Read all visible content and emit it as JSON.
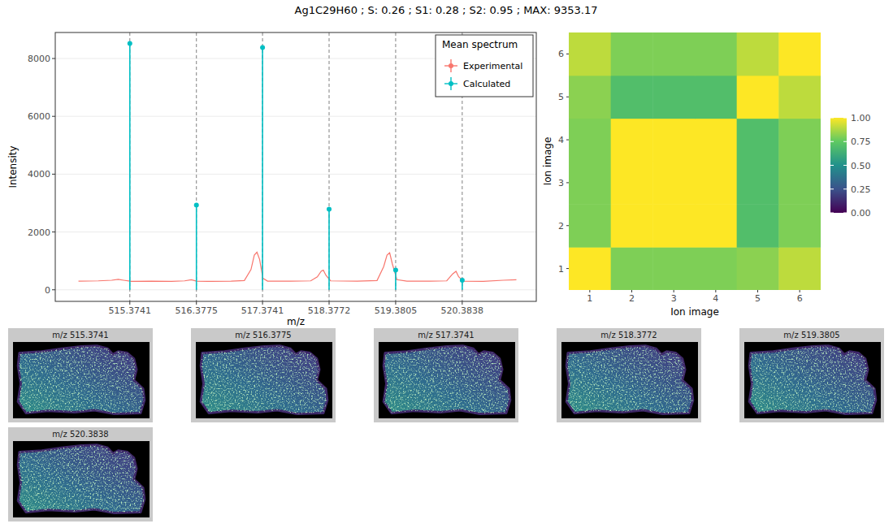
{
  "title": "Ag1C29H60 ; S: 0.26 ; S1: 0.28 ; S2: 0.95 ; MAX: 9353.17",
  "chart_data": [
    {
      "type": "line",
      "x_label": "m/z",
      "y_label": "Intensity",
      "xlim": [
        514.25,
        521.5
      ],
      "ylim": [
        -400,
        8900
      ],
      "xticks": [
        515.3741,
        516.3775,
        517.3741,
        518.3772,
        519.3805,
        520.3838
      ],
      "yticks": [
        0,
        2000,
        4000,
        6000,
        8000
      ],
      "grid": true,
      "legend": "top-right",
      "legend_title": "Mean spectrum",
      "series": [
        {
          "name": "Experimental",
          "color": "#F8766D",
          "type": "line",
          "x": [
            514.6,
            514.9,
            515.1,
            515.2,
            515.28,
            515.4,
            515.7,
            516.0,
            516.2,
            516.3,
            516.38,
            516.6,
            516.9,
            517.1,
            517.2,
            517.25,
            517.29,
            517.33,
            517.38,
            517.45,
            517.8,
            518.1,
            518.2,
            518.26,
            518.29,
            518.33,
            518.4,
            518.8,
            519.1,
            519.2,
            519.25,
            519.29,
            519.33,
            519.4,
            519.55,
            519.9,
            520.15,
            520.24,
            520.29,
            520.33,
            520.4,
            520.7,
            521.0,
            521.2
          ],
          "values": [
            300,
            310,
            330,
            360,
            330,
            290,
            300,
            290,
            310,
            350,
            300,
            290,
            300,
            320,
            700,
            1200,
            1300,
            1050,
            400,
            300,
            300,
            310,
            450,
            650,
            680,
            500,
            310,
            300,
            320,
            800,
            1200,
            1280,
            900,
            350,
            300,
            300,
            310,
            550,
            640,
            450,
            300,
            290,
            330,
            350
          ]
        },
        {
          "name": "Calculated",
          "color": "#00BFC4",
          "type": "stem",
          "marker": "circle",
          "x": [
            515.3741,
            516.3775,
            517.3741,
            518.3772,
            519.3805,
            520.3838
          ],
          "values": [
            8520,
            2930,
            8380,
            2790,
            680,
            330
          ]
        }
      ]
    },
    {
      "type": "heatmap",
      "x_label": "Ion image",
      "y_label": "Ion image",
      "xlim": [
        0.5,
        6.5
      ],
      "ylim": [
        0.5,
        6.5
      ],
      "xticks": [
        1,
        2,
        3,
        4,
        5,
        6
      ],
      "yticks": [
        1,
        2,
        3,
        4,
        5,
        6
      ],
      "cells": [
        [
          1.0,
          0.8,
          0.8,
          0.8,
          0.82,
          0.9
        ],
        [
          0.8,
          1.0,
          1.0,
          1.0,
          0.7,
          0.8
        ],
        [
          0.8,
          1.0,
          1.0,
          1.0,
          0.7,
          0.8
        ],
        [
          0.8,
          1.0,
          1.0,
          1.0,
          0.7,
          0.8
        ],
        [
          0.82,
          0.7,
          0.7,
          0.7,
          1.0,
          0.9
        ],
        [
          0.9,
          0.8,
          0.8,
          0.8,
          0.9,
          1.0
        ]
      ],
      "color_range": [
        0,
        1
      ],
      "color_ticks": [
        {
          "value": 0,
          "label": "0.00"
        },
        0.25,
        {
          "value": 0.5,
          "label": "0.50"
        },
        0.75,
        {
          "value": 1,
          "label": "1.00"
        }
      ]
    }
  ],
  "ion_images": [
    {
      "title": "m/z 515.3741"
    },
    {
      "title": "m/z 516.3775"
    },
    {
      "title": "m/z 517.3741"
    },
    {
      "title": "m/z 518.3772"
    },
    {
      "title": "m/z 519.3805"
    },
    {
      "title": "m/z 520.3838"
    }
  ]
}
